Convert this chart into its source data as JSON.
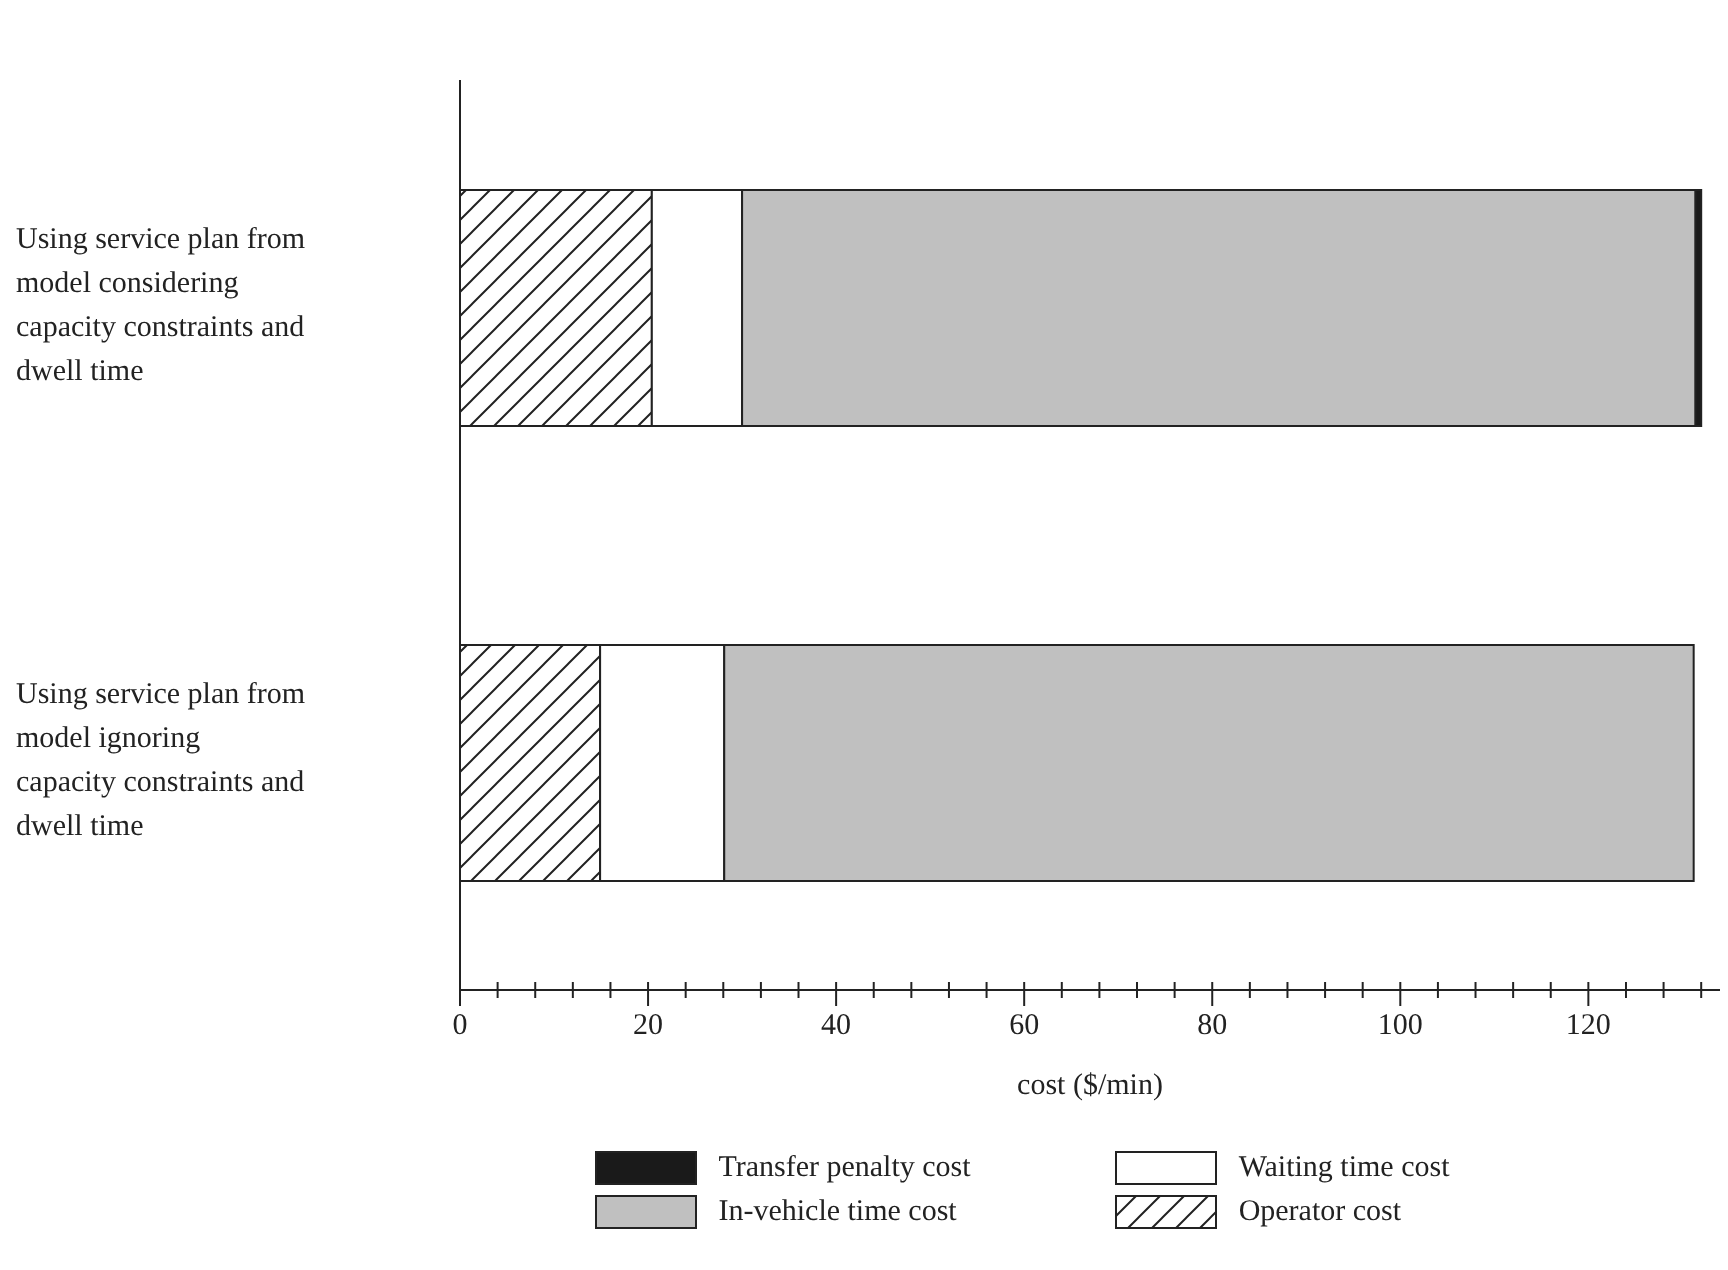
{
  "chart_data": {
    "type": "bar",
    "orientation": "horizontal",
    "stacked": true,
    "xlabel": "cost ($/min)",
    "categories": [
      "Using service plan from model considering capacity constraints and dwell time",
      "Using service plan from model ignoring capacity constraints and dwell time"
    ],
    "series": [
      {
        "name": "Operator cost",
        "color": "#222222",
        "values": [
          20.4,
          14.9
        ]
      },
      {
        "name": "Waiting time cost",
        "color": "#ffffff",
        "values": [
          9.6,
          13.2
        ]
      },
      {
        "name": "In-vehicle time cost",
        "color": "#c0c0c0",
        "values": [
          101.4,
          103.1
        ]
      },
      {
        "name": "Transfer penalty cost",
        "color": "#1a1a1a",
        "values": [
          0.6,
          0
        ]
      }
    ],
    "xlim": [
      0,
      134
    ],
    "xticks": [
      0,
      {
        "value": 4,
        "label": null
      },
      {
        "value": 8,
        "label": null
      },
      {
        "value": 12,
        "label": null
      },
      {
        "value": 16,
        "label": null
      },
      20,
      {
        "value": 24,
        "label": null
      },
      {
        "value": 28,
        "label": null
      },
      {
        "value": 32,
        "label": null
      },
      {
        "value": 36,
        "label": null
      },
      40,
      {
        "value": 44,
        "label": null
      },
      {
        "value": 48,
        "label": null
      },
      {
        "value": 52,
        "label": null
      },
      {
        "value": 56,
        "label": null
      },
      60,
      {
        "value": 64,
        "label": null
      },
      {
        "value": 68,
        "label": null
      },
      {
        "value": 72,
        "label": null
      },
      {
        "value": 76,
        "label": null
      },
      80,
      {
        "value": 84,
        "label": null
      },
      {
        "value": 88,
        "label": null
      },
      {
        "value": 92,
        "label": null
      },
      {
        "value": 96,
        "label": null
      },
      100,
      {
        "value": 104,
        "label": null
      },
      {
        "value": 108,
        "label": null
      },
      {
        "value": 112,
        "label": null
      },
      {
        "value": 116,
        "label": null
      },
      120,
      {
        "value": 124,
        "label": null
      },
      {
        "value": 128,
        "label": null
      },
      {
        "value": 132,
        "label": null
      }
    ],
    "grid": false,
    "legend": "bottom"
  }
}
